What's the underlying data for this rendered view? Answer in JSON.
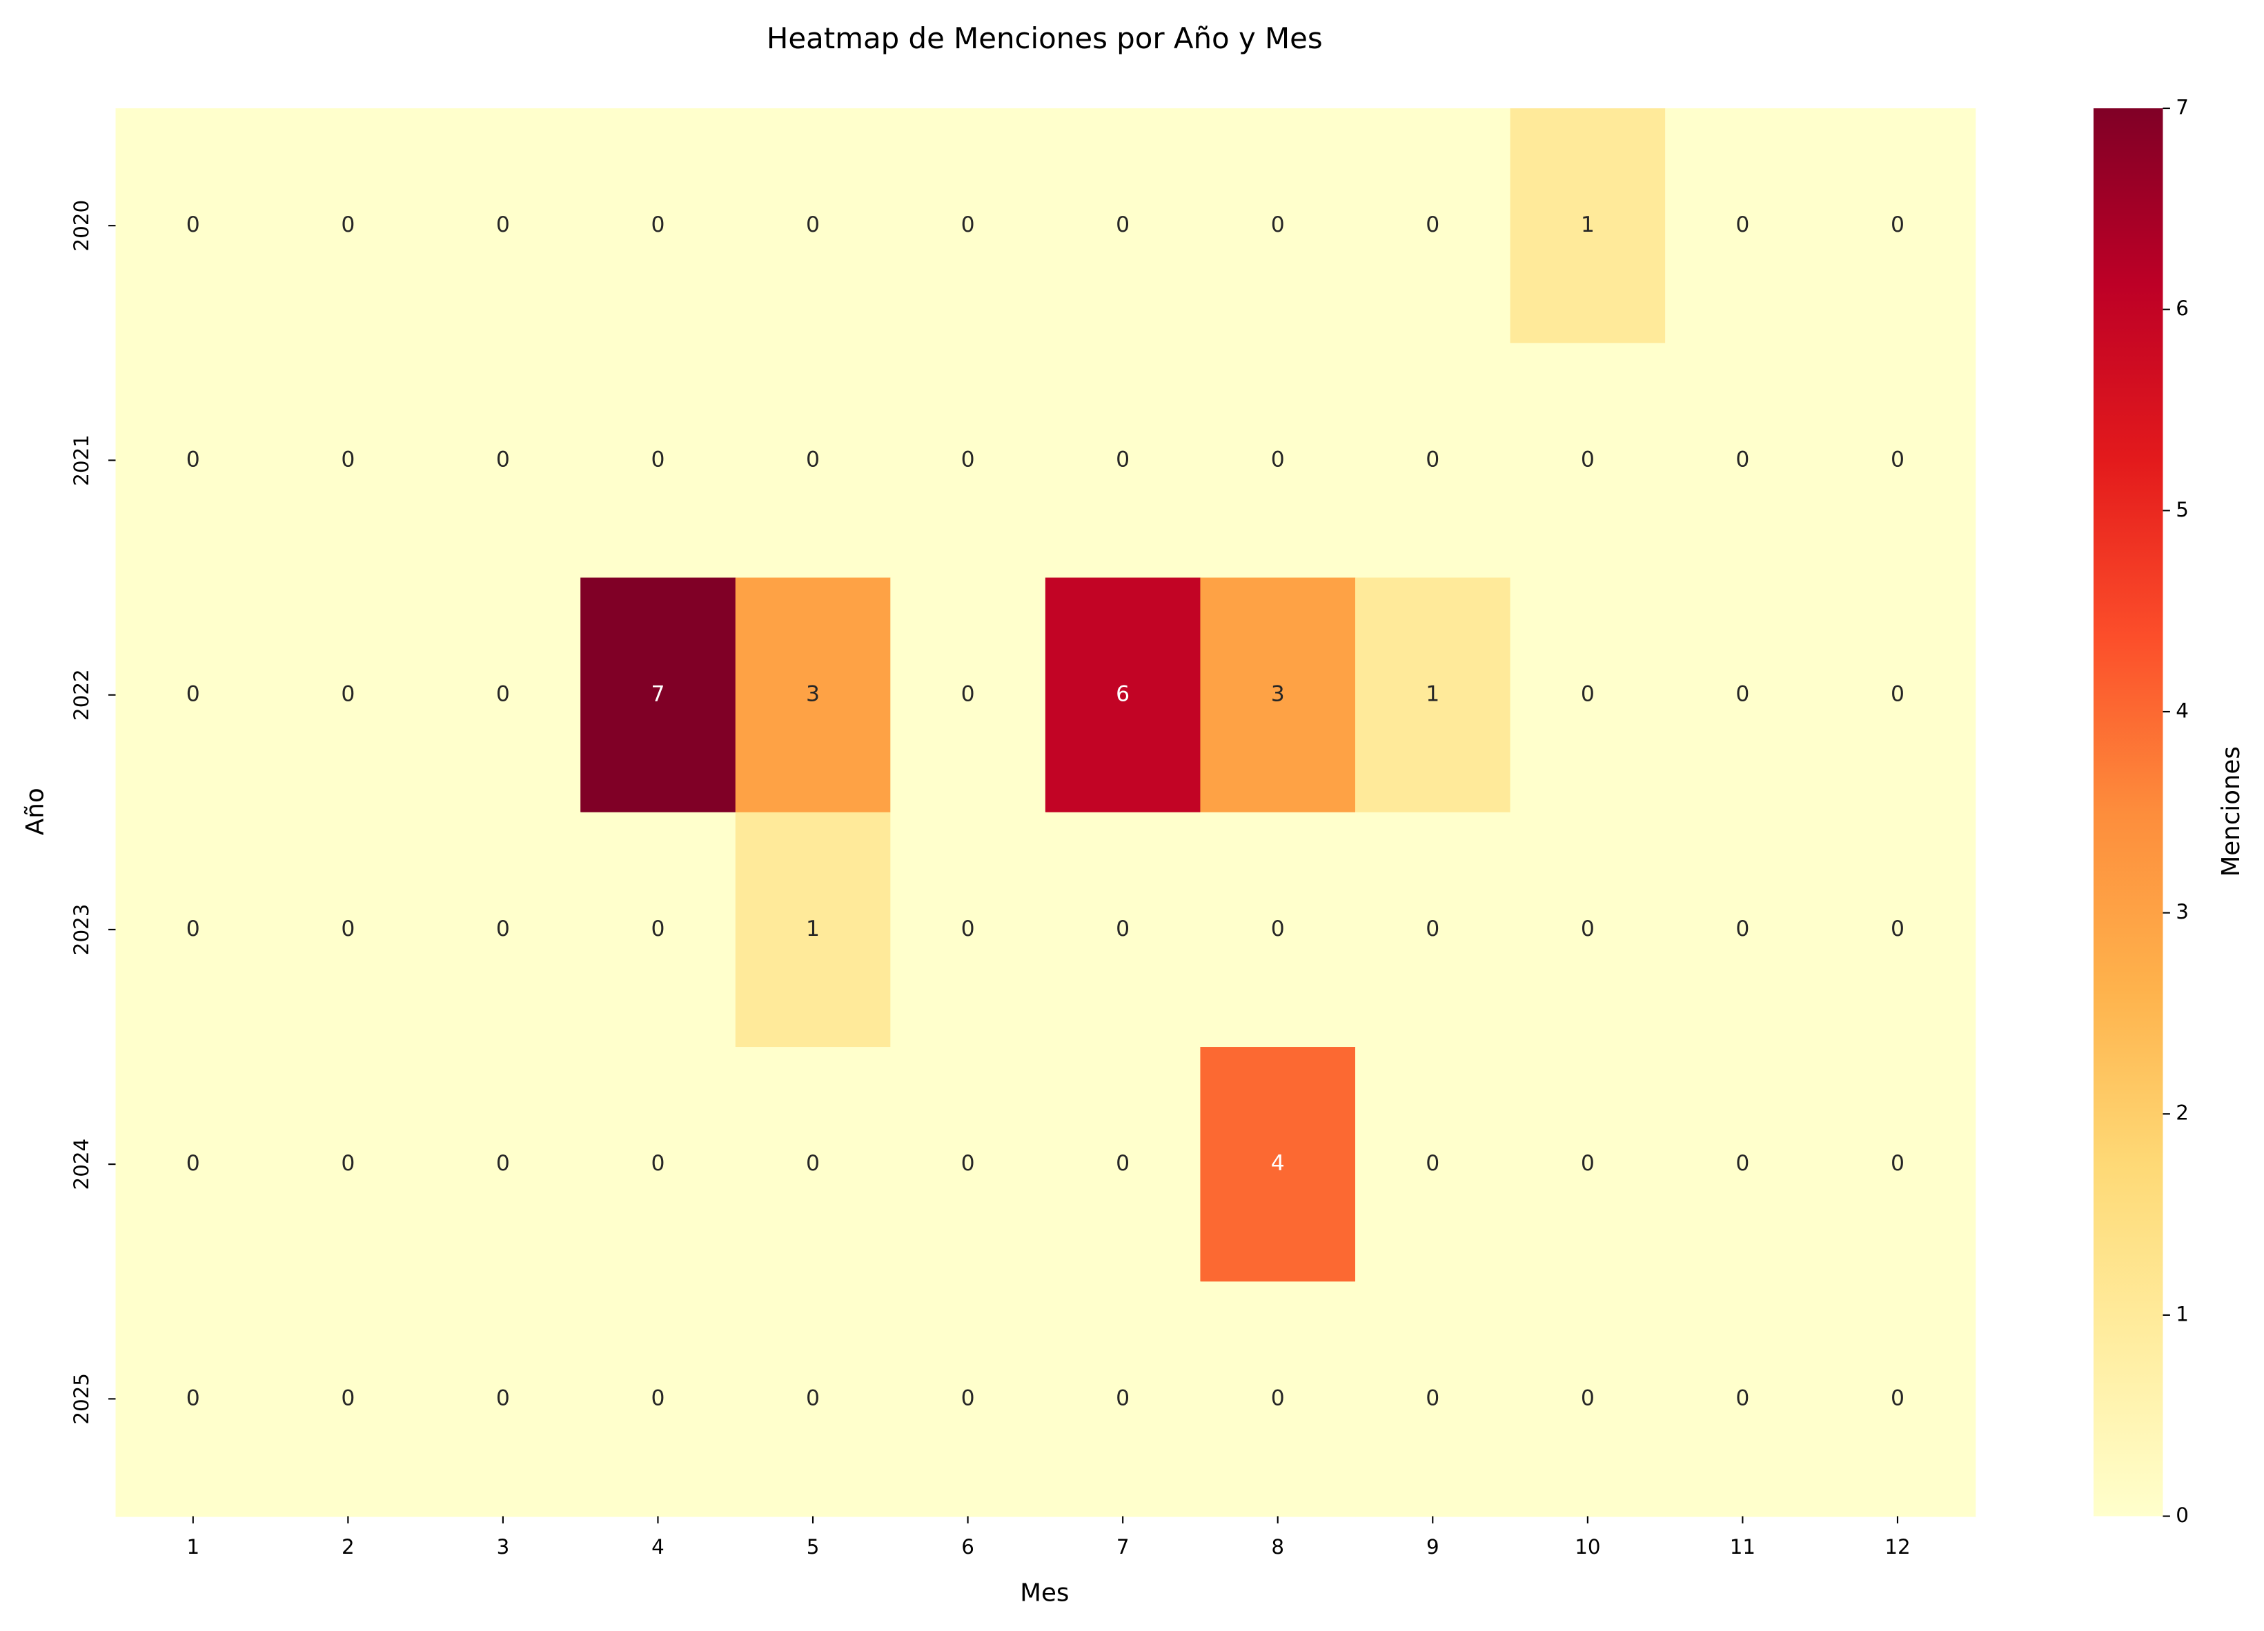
{
  "chart_data": {
    "type": "heatmap",
    "title": "Heatmap de Menciones por Año y Mes",
    "x_label": "Mes",
    "y_label": "Año",
    "x_categories": [
      1,
      2,
      3,
      4,
      5,
      6,
      7,
      8,
      9,
      10,
      11,
      12
    ],
    "y_categories": [
      2020,
      2021,
      2022,
      2023,
      2024,
      2025
    ],
    "values": [
      [
        0,
        0,
        0,
        0,
        0,
        0,
        0,
        0,
        0,
        1,
        0,
        0
      ],
      [
        0,
        0,
        0,
        0,
        0,
        0,
        0,
        0,
        0,
        0,
        0,
        0
      ],
      [
        0,
        0,
        0,
        7,
        3,
        0,
        6,
        3,
        1,
        0,
        0,
        0
      ],
      [
        0,
        0,
        0,
        0,
        1,
        0,
        0,
        0,
        0,
        0,
        0,
        0
      ],
      [
        0,
        0,
        0,
        0,
        0,
        0,
        0,
        4,
        0,
        0,
        0,
        0
      ],
      [
        0,
        0,
        0,
        0,
        0,
        0,
        0,
        0,
        0,
        0,
        0,
        0
      ]
    ],
    "colorbar_label": "Menciones",
    "colorbar_lim": [
      0,
      7
    ],
    "colorbar_ticks": [
      0,
      1,
      2,
      3,
      4,
      5,
      6,
      7
    ],
    "colormap": [
      "#ffffcc",
      "#ffeda0",
      "#fed976",
      "#feb24c",
      "#fd8d3c",
      "#fc4e2a",
      "#e31a1c",
      "#bd0026",
      "#800026"
    ]
  }
}
